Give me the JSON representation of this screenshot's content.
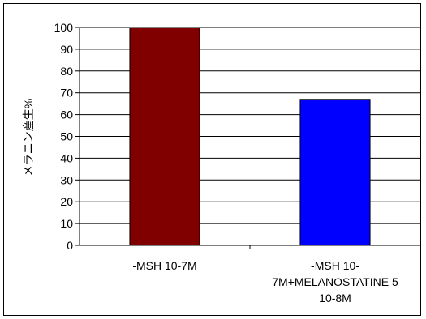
{
  "chart_data": {
    "type": "bar",
    "categories": [
      [
        "-MSH 10-7M"
      ],
      [
        "-MSH 10-",
        "7M+MELANOSTATINE 5",
        "10-8M"
      ]
    ],
    "values": [
      100,
      67
    ],
    "colors": [
      "#800000",
      "#0000FF"
    ],
    "ylabel": "メラニン産生%",
    "xlabel": "",
    "title": "",
    "ylim": [
      0,
      100
    ],
    "yticks": [
      0,
      10,
      20,
      30,
      40,
      50,
      60,
      70,
      80,
      90,
      100
    ],
    "grid": true
  }
}
